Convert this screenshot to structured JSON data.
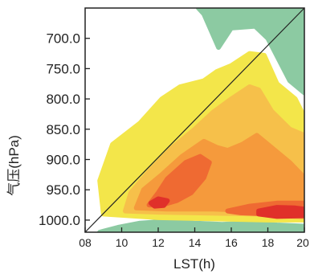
{
  "chart_data": {
    "type": "heatmap",
    "title": "",
    "xlabel": "LST(h)",
    "ylabel": "气压(hPa)",
    "x_ticks": [
      8,
      10,
      12,
      14,
      16,
      18,
      20
    ],
    "x_tick_labels": [
      "08",
      "10",
      "12",
      "14",
      "16",
      "18",
      "20"
    ],
    "y_ticks": [
      700,
      750,
      800,
      850,
      900,
      950,
      1000
    ],
    "y_tick_labels": [
      "700.0",
      "750.0",
      "800.0",
      "850.0",
      "900.0",
      "950.0",
      "1000.0"
    ],
    "xlim": [
      8,
      20
    ],
    "ylim": [
      1020,
      650
    ],
    "grid": false,
    "legend": "none",
    "colors": {
      "green": "#8ccaa2",
      "yellow": "#f3e64a",
      "light_orange": "#f6c04a",
      "orange": "#f59a3c",
      "red_orange": "#ef6a32",
      "red": "#e0302a",
      "diagonal_line": "#222222"
    },
    "reference_line": {
      "x": [
        8,
        20
      ],
      "y": [
        1020,
        650
      ]
    },
    "regions": [
      {
        "level": "green",
        "label": "upper-right band",
        "points": [
          [
            17.0,
            650
          ],
          [
            20,
            650
          ],
          [
            20,
            790
          ],
          [
            19.2,
            770
          ],
          [
            18.0,
            700
          ],
          [
            17.3,
            680
          ],
          [
            16.0,
            683
          ],
          [
            15.3,
            715
          ],
          [
            14.5,
            660
          ],
          [
            14.2,
            650
          ]
        ]
      },
      {
        "level": "green",
        "label": "surface band",
        "points": [
          [
            8.8,
            1020
          ],
          [
            9.8,
            1012
          ],
          [
            11.0,
            1005
          ],
          [
            12.5,
            1002
          ],
          [
            14.0,
            1005
          ],
          [
            15.5,
            1007
          ],
          [
            17.0,
            1005
          ],
          [
            18.5,
            1008
          ],
          [
            20,
            1010
          ],
          [
            20,
            1020
          ]
        ]
      },
      {
        "level": "yellow",
        "points": [
          [
            9.0,
            990
          ],
          [
            8.8,
            935
          ],
          [
            9.5,
            875
          ],
          [
            11.0,
            840
          ],
          [
            12.2,
            800
          ],
          [
            13.2,
            780
          ],
          [
            14.5,
            770
          ],
          [
            15.2,
            755
          ],
          [
            16.0,
            745
          ],
          [
            17.0,
            725
          ],
          [
            17.8,
            728
          ],
          [
            18.5,
            775
          ],
          [
            19.5,
            800
          ],
          [
            20,
            830
          ],
          [
            20,
            1000
          ],
          [
            18.0,
            1000
          ],
          [
            15.0,
            998
          ],
          [
            12.0,
            996
          ]
        ]
      },
      {
        "level": "light_orange",
        "points": [
          [
            10.2,
            985
          ],
          [
            10.5,
            955
          ],
          [
            11.5,
            920
          ],
          [
            12.8,
            880
          ],
          [
            14.0,
            850
          ],
          [
            15.0,
            822
          ],
          [
            16.0,
            800
          ],
          [
            17.0,
            780
          ],
          [
            17.5,
            785
          ],
          [
            18.2,
            820
          ],
          [
            19.2,
            850
          ],
          [
            20,
            860
          ],
          [
            20,
            995
          ],
          [
            17.5,
            990
          ],
          [
            14.0,
            988
          ],
          [
            12.0,
            987
          ]
        ]
      },
      {
        "level": "orange",
        "points": [
          [
            10.8,
            980
          ],
          [
            11.2,
            950
          ],
          [
            12.2,
            925
          ],
          [
            13.3,
            895
          ],
          [
            14.5,
            870
          ],
          [
            15.2,
            880
          ],
          [
            15.8,
            885
          ],
          [
            16.6,
            875
          ],
          [
            17.4,
            860
          ],
          [
            18.2,
            880
          ],
          [
            19.2,
            905
          ],
          [
            20,
            930
          ],
          [
            20,
            992
          ],
          [
            18.0,
            985
          ],
          [
            15.0,
            982
          ],
          [
            12.5,
            982
          ]
        ]
      },
      {
        "level": "red_orange",
        "points": [
          [
            11.5,
            975
          ],
          [
            12.0,
            955
          ],
          [
            12.5,
            932
          ],
          [
            13.5,
            905
          ],
          [
            14.3,
            895
          ],
          [
            14.8,
            905
          ],
          [
            14.5,
            930
          ],
          [
            13.8,
            955
          ],
          [
            13.0,
            968
          ],
          [
            12.2,
            975
          ]
        ]
      },
      {
        "level": "red_orange",
        "points": [
          [
            15.8,
            985
          ],
          [
            17.0,
            977
          ],
          [
            18.5,
            972
          ],
          [
            20,
            972
          ],
          [
            20,
            992
          ],
          [
            18.0,
            990
          ],
          [
            16.5,
            988
          ]
        ]
      },
      {
        "level": "red",
        "points": [
          [
            11.6,
            972
          ],
          [
            12.0,
            965
          ],
          [
            12.5,
            968
          ],
          [
            12.3,
            976
          ],
          [
            11.8,
            977
          ]
        ]
      },
      {
        "level": "red",
        "points": [
          [
            17.5,
            985
          ],
          [
            18.5,
            979
          ],
          [
            19.5,
            980
          ],
          [
            20,
            982
          ],
          [
            20,
            993
          ],
          [
            18.5,
            994
          ],
          [
            17.5,
            990
          ]
        ]
      }
    ]
  }
}
